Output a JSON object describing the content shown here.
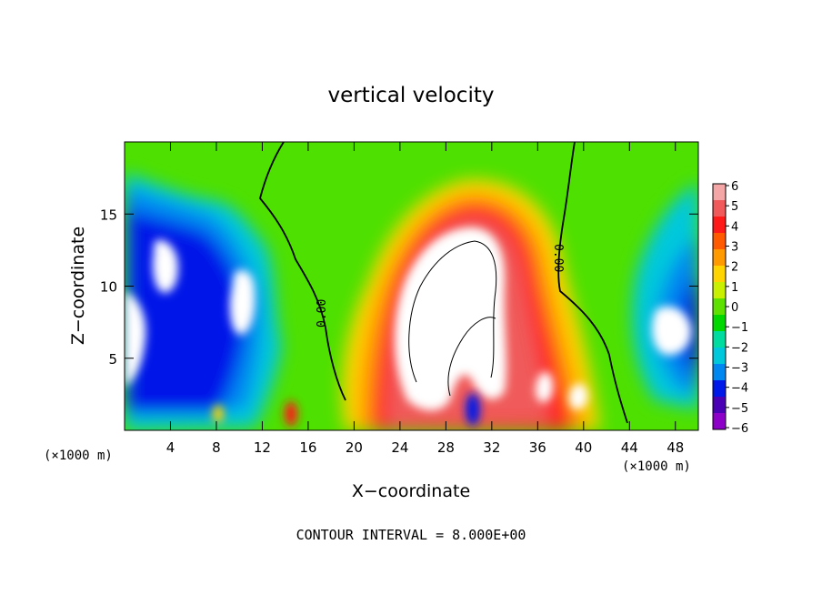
{
  "chart_data": {
    "type": "heatmap",
    "title": "vertical velocity",
    "xlabel": "X−coordinate",
    "ylabel": "Z−coordinate",
    "x_unit_label": "(×1000 m)",
    "footer": "CONTOUR INTERVAL = 8.000E+00",
    "xlim": [
      0,
      50
    ],
    "ylim": [
      0,
      20
    ],
    "x_ticks": [
      "4",
      "8",
      "12",
      "16",
      "20",
      "24",
      "28",
      "32",
      "36",
      "40",
      "44",
      "48"
    ],
    "y_ticks": [
      "5",
      "10",
      "15"
    ],
    "colorbar": {
      "ticks": [
        "6",
        "5",
        "4",
        "3",
        "2",
        "1",
        "0",
        "−1",
        "−2",
        "−3",
        "−4",
        "−5",
        "−6"
      ],
      "range": [
        -6,
        6
      ],
      "colors": [
        "#f4a6a6",
        "#f05a5a",
        "#ff1a1a",
        "#ff5a00",
        "#ff9a00",
        "#ffd400",
        "#c8f000",
        "#5ee000",
        "#00d800",
        "#00dca0",
        "#00c8dc",
        "#0088f0",
        "#0018e8",
        "#4a00b4",
        "#8c00c8"
      ]
    },
    "contour_labels": [
      "0.00",
      "0.00"
    ],
    "beyond_range_fill": "#ffffff"
  }
}
